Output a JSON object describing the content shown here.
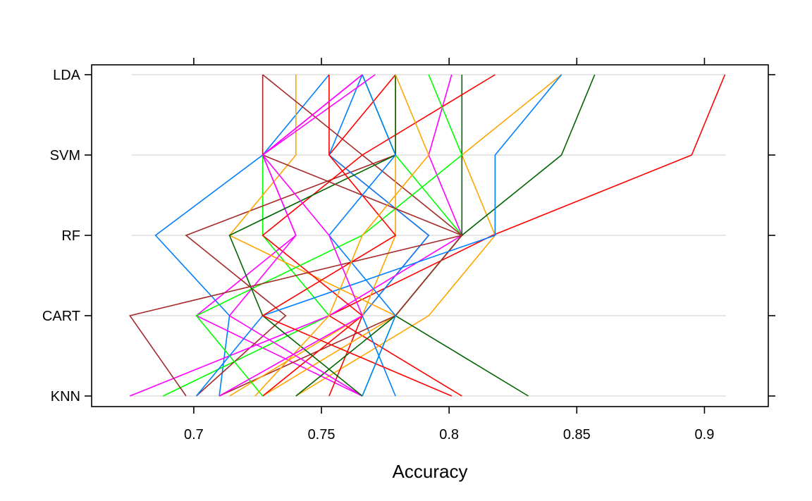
{
  "chart_data": {
    "type": "line",
    "xlabel": "Accuracy",
    "xlim": [
      0.66,
      0.925
    ],
    "x_ticks": [
      0.7,
      0.75,
      0.8,
      0.85,
      0.9
    ],
    "x_tick_labels": [
      "0.7",
      "0.75",
      "0.8",
      "0.85",
      "0.9"
    ],
    "categories": [
      "KNN",
      "CART",
      "RF",
      "SVM",
      "LDA"
    ],
    "grid": true,
    "series": [
      {
        "color": "#ff0000",
        "values": [
          0.805,
          0.753,
          0.817,
          0.895,
          0.908
        ]
      },
      {
        "color": "#ffa500",
        "values": [
          0.74,
          0.792,
          0.818,
          0.805,
          0.844
        ]
      },
      {
        "color": "#0080ff",
        "values": [
          0.71,
          0.714,
          0.685,
          0.727,
          0.753
        ]
      },
      {
        "color": "#ff00ff",
        "values": [
          0.766,
          0.701,
          0.74,
          0.727,
          0.766
        ]
      },
      {
        "color": "#00ff00",
        "values": [
          0.688,
          0.753,
          0.727,
          0.727,
          0.727
        ]
      },
      {
        "color": "#006400",
        "values": [
          0.831,
          0.779,
          0.805,
          0.844,
          0.857
        ]
      },
      {
        "color": "#a52a2a",
        "values": [
          0.701,
          0.736,
          0.697,
          0.779,
          0.766
        ]
      },
      {
        "color": "#ff0000",
        "values": [
          0.753,
          0.766,
          0.792,
          0.753,
          0.779
        ]
      },
      {
        "color": "#0080ff",
        "values": [
          0.779,
          0.766,
          0.792,
          0.753,
          0.766
        ]
      },
      {
        "color": "#ffa500",
        "values": [
          0.727,
          0.779,
          0.714,
          0.74,
          0.74
        ]
      },
      {
        "color": "#ff00ff",
        "values": [
          0.675,
          0.753,
          0.805,
          0.792,
          0.801
        ]
      },
      {
        "color": "#00ff00",
        "values": [
          0.766,
          0.779,
          0.805,
          0.779,
          0.766
        ]
      },
      {
        "color": "#006400",
        "values": [
          0.74,
          0.779,
          0.805,
          0.805,
          0.805
        ]
      },
      {
        "color": "#a52a2a",
        "values": [
          0.71,
          0.779,
          0.805,
          0.766,
          0.727
        ]
      },
      {
        "color": "#ff0000",
        "values": [
          0.727,
          0.766,
          0.727,
          0.766,
          0.818
        ]
      },
      {
        "color": "#ffa500",
        "values": [
          0.714,
          0.766,
          0.779,
          0.779,
          0.779
        ]
      },
      {
        "color": "#0080ff",
        "values": [
          0.701,
          0.727,
          0.818,
          0.818,
          0.844
        ]
      },
      {
        "color": "#ff00ff",
        "values": [
          0.766,
          0.714,
          0.74,
          0.727,
          0.771
        ]
      },
      {
        "color": "#00ff00",
        "values": [
          0.727,
          0.701,
          0.766,
          0.805,
          0.792
        ]
      },
      {
        "color": "#006400",
        "values": [
          0.766,
          0.727,
          0.714,
          0.779,
          0.779
        ]
      },
      {
        "color": "#a52a2a",
        "values": [
          0.697,
          0.675,
          0.805,
          0.727,
          0.727
        ]
      },
      {
        "color": "#ff0000",
        "values": [
          0.801,
          0.727,
          0.779,
          0.753,
          0.753
        ]
      },
      {
        "color": "#0080ff",
        "values": [
          0.766,
          0.779,
          0.753,
          0.779,
          0.766
        ]
      },
      {
        "color": "#ffa500",
        "values": [
          0.724,
          0.753,
          0.766,
          0.792,
          0.779
        ]
      },
      {
        "color": "#ff00ff",
        "values": [
          0.71,
          0.766,
          0.753,
          0.727,
          0.766
        ]
      }
    ]
  }
}
